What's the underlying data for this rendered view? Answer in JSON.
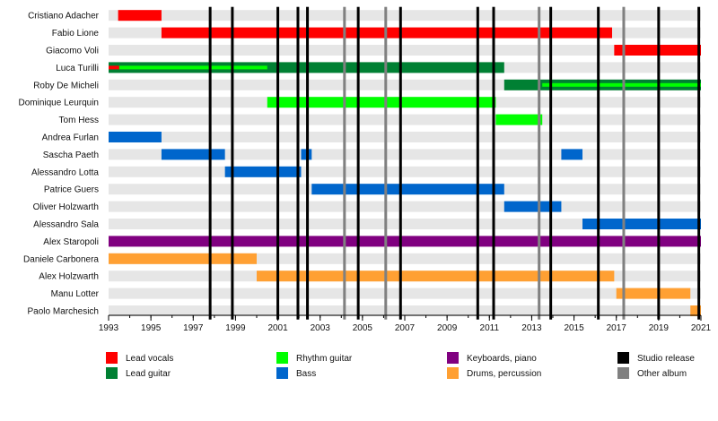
{
  "chart_data": {
    "type": "timeline",
    "x_range": [
      1993,
      2021
    ],
    "x_ticks": [
      "1993",
      "1995",
      "1997",
      "1999",
      "2001",
      "2003",
      "2005",
      "2007",
      "2009",
      "2011",
      "2013",
      "2015",
      "2017",
      "2019",
      "2021"
    ],
    "grid": true,
    "legend_position": "bottom",
    "roles": [
      {
        "key": "lead_vocals",
        "label": "Lead vocals",
        "color": "#ff0000"
      },
      {
        "key": "lead_guitar",
        "label": "Lead guitar",
        "color": "#008033"
      },
      {
        "key": "rhythm_guitar",
        "label": "Rhythm guitar",
        "color": "#00ff00"
      },
      {
        "key": "bass",
        "label": "Bass",
        "color": "#0066cc"
      },
      {
        "key": "keyboards",
        "label": "Keyboards, piano",
        "color": "#800080"
      },
      {
        "key": "drums",
        "label": "Drums, percussion",
        "color": "#ffa033"
      },
      {
        "key": "studio_release",
        "label": "Studio release",
        "color": "#000000"
      },
      {
        "key": "other_album",
        "label": "Other album",
        "color": "#808080"
      }
    ],
    "members": [
      {
        "name": "Cristiano Adacher",
        "bars": [
          {
            "start": 1993.45,
            "end": 1995.5,
            "role": "lead_vocals"
          }
        ]
      },
      {
        "name": "Fabio Lione",
        "bars": [
          {
            "start": 1995.5,
            "end": 2016.8,
            "role": "lead_vocals"
          }
        ]
      },
      {
        "name": "Giacomo Voli",
        "bars": [
          {
            "start": 2016.9,
            "end": 2021.0,
            "role": "lead_vocals"
          }
        ]
      },
      {
        "name": "Luca Turilli",
        "bars": [
          {
            "start": 1993.0,
            "end": 2011.7,
            "role": "lead_guitar"
          },
          {
            "start": 1993.5,
            "end": 2000.5,
            "role": "rhythm_guitar",
            "overlay": true
          },
          {
            "start": 1993.0,
            "end": 1993.5,
            "role": "lead_vocals",
            "overlay": true
          }
        ]
      },
      {
        "name": "Roby De Micheli",
        "bars": [
          {
            "start": 2011.7,
            "end": 2021.0,
            "role": "lead_guitar"
          },
          {
            "start": 2013.5,
            "end": 2021.0,
            "role": "rhythm_guitar",
            "overlay": true
          }
        ]
      },
      {
        "name": "Dominique Leurquin",
        "bars": [
          {
            "start": 2000.5,
            "end": 2011.3,
            "role": "rhythm_guitar"
          }
        ]
      },
      {
        "name": "Tom Hess",
        "bars": [
          {
            "start": 2011.3,
            "end": 2013.5,
            "role": "rhythm_guitar"
          }
        ]
      },
      {
        "name": "Andrea Furlan",
        "bars": [
          {
            "start": 1993.0,
            "end": 1995.5,
            "role": "bass"
          }
        ]
      },
      {
        "name": "Sascha Paeth",
        "bars": [
          {
            "start": 1995.5,
            "end": 1998.5,
            "role": "bass"
          },
          {
            "start": 2002.1,
            "end": 2002.6,
            "role": "bass"
          },
          {
            "start": 2014.4,
            "end": 2015.4,
            "role": "bass"
          }
        ]
      },
      {
        "name": "Alessandro Lotta",
        "bars": [
          {
            "start": 1998.5,
            "end": 2002.1,
            "role": "bass"
          }
        ]
      },
      {
        "name": "Patrice Guers",
        "bars": [
          {
            "start": 2002.6,
            "end": 2011.7,
            "role": "bass"
          }
        ]
      },
      {
        "name": "Oliver Holzwarth",
        "bars": [
          {
            "start": 2011.7,
            "end": 2014.4,
            "role": "bass"
          }
        ]
      },
      {
        "name": "Alessandro Sala",
        "bars": [
          {
            "start": 2015.4,
            "end": 2021.0,
            "role": "bass"
          }
        ]
      },
      {
        "name": "Alex Staropoli",
        "bars": [
          {
            "start": 1993.0,
            "end": 2021.0,
            "role": "keyboards"
          }
        ]
      },
      {
        "name": "Daniele Carbonera",
        "bars": [
          {
            "start": 1993.0,
            "end": 2000.0,
            "role": "drums"
          }
        ]
      },
      {
        "name": "Alex Holzwarth",
        "bars": [
          {
            "start": 2000.0,
            "end": 2016.9,
            "role": "drums"
          }
        ]
      },
      {
        "name": "Manu Lotter",
        "bars": [
          {
            "start": 2017.0,
            "end": 2020.5,
            "role": "drums"
          }
        ]
      },
      {
        "name": "Paolo Marchesich",
        "bars": [
          {
            "start": 2020.5,
            "end": 2021.0,
            "role": "drums"
          }
        ]
      }
    ],
    "release_lines": [
      {
        "year": 1997.8,
        "role": "studio_release"
      },
      {
        "year": 1998.85,
        "role": "studio_release"
      },
      {
        "year": 2001.0,
        "role": "studio_release"
      },
      {
        "year": 2001.95,
        "role": "studio_release"
      },
      {
        "year": 2002.4,
        "role": "studio_release"
      },
      {
        "year": 2004.15,
        "role": "other_album"
      },
      {
        "year": 2004.8,
        "role": "studio_release"
      },
      {
        "year": 2006.1,
        "role": "other_album"
      },
      {
        "year": 2006.8,
        "role": "studio_release"
      },
      {
        "year": 2010.45,
        "role": "studio_release"
      },
      {
        "year": 2011.2,
        "role": "studio_release"
      },
      {
        "year": 2013.35,
        "role": "other_album"
      },
      {
        "year": 2013.9,
        "role": "studio_release"
      },
      {
        "year": 2016.15,
        "role": "studio_release"
      },
      {
        "year": 2017.35,
        "role": "other_album"
      },
      {
        "year": 2019.0,
        "role": "studio_release"
      },
      {
        "year": 2020.9,
        "role": "studio_release"
      }
    ]
  }
}
